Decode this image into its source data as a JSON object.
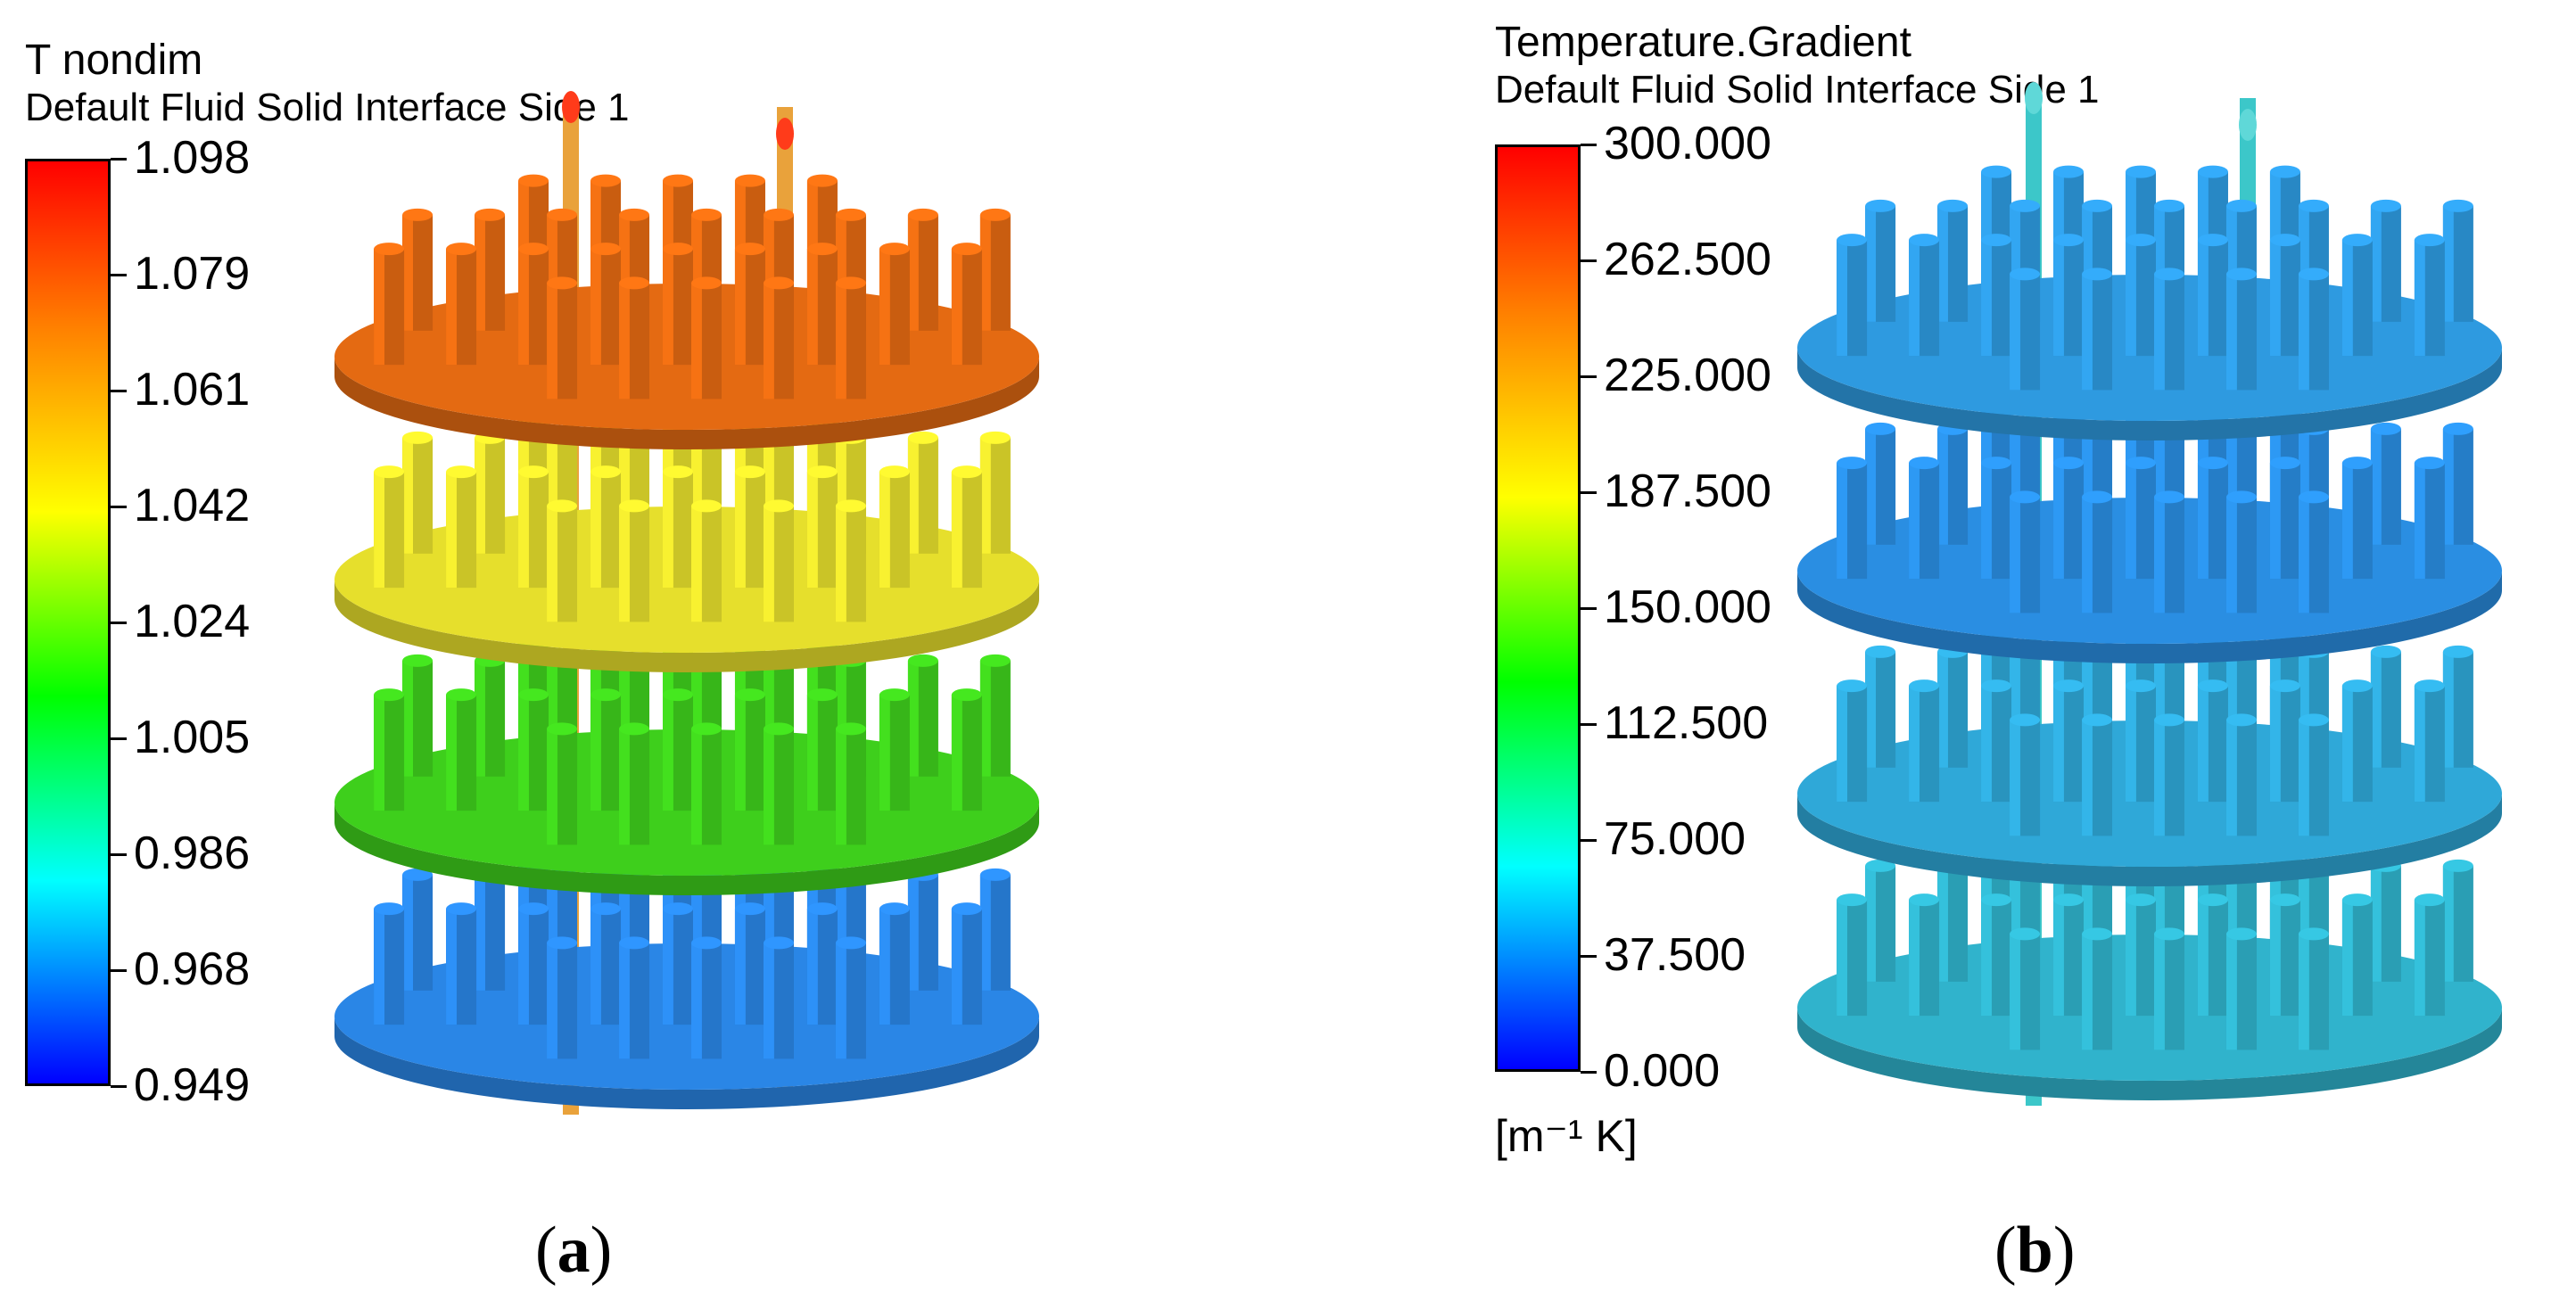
{
  "panel_a": {
    "title": "T nondim",
    "subtitle": "Default Fluid Solid Interface Side 1",
    "ticks": [
      "1.098",
      "1.079",
      "1.061",
      "1.042",
      "1.024",
      "1.005",
      "0.986",
      "0.968",
      "0.949"
    ],
    "caption_open": "(",
    "caption_letter": "a",
    "caption_close": ")",
    "plates": [
      "#e46a12",
      "#e6df2c",
      "#3ecf1c",
      "#2a86e6"
    ]
  },
  "panel_b": {
    "title": "Temperature.Gradient",
    "subtitle": "Default Fluid Solid Interface Side 1",
    "ticks": [
      "300.000",
      "262.500",
      "225.000",
      "187.500",
      "150.000",
      "112.500",
      "75.000",
      "37.500",
      "0.000"
    ],
    "unit": "[m⁻¹ K]",
    "caption_open": "(",
    "caption_letter": "b",
    "caption_close": ")",
    "plates": [
      "#2e9ae0",
      "#2a8ee2",
      "#2fa8d8",
      "#30b3cc"
    ]
  },
  "colormap": [
    "#ff0000",
    "#ff8000",
    "#ffff00",
    "#00ff00",
    "#00ffff",
    "#0000ff"
  ]
}
